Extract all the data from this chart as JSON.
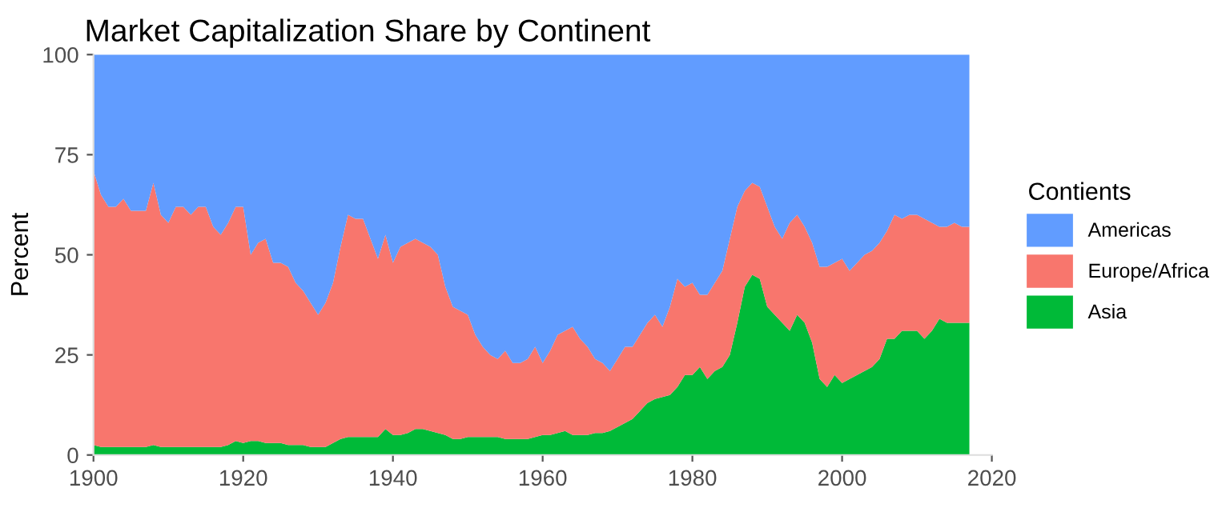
{
  "chart_data": {
    "type": "area",
    "stacked": true,
    "title": "Market Capitalization Share by Continent",
    "ylabel": "Percent",
    "legend_title": "Contients",
    "legend": "right",
    "grid": false,
    "x": [
      1900,
      1901,
      1902,
      1903,
      1904,
      1905,
      1906,
      1907,
      1908,
      1909,
      1910,
      1911,
      1912,
      1913,
      1914,
      1915,
      1916,
      1917,
      1918,
      1919,
      1920,
      1921,
      1922,
      1923,
      1924,
      1925,
      1926,
      1927,
      1928,
      1929,
      1930,
      1931,
      1932,
      1933,
      1934,
      1935,
      1936,
      1937,
      1938,
      1939,
      1940,
      1941,
      1942,
      1943,
      1944,
      1945,
      1946,
      1947,
      1948,
      1949,
      1950,
      1951,
      1952,
      1953,
      1954,
      1955,
      1956,
      1957,
      1958,
      1959,
      1960,
      1961,
      1962,
      1963,
      1964,
      1965,
      1966,
      1967,
      1968,
      1969,
      1970,
      1971,
      1972,
      1973,
      1974,
      1975,
      1976,
      1977,
      1978,
      1979,
      1980,
      1981,
      1982,
      1983,
      1984,
      1985,
      1986,
      1987,
      1988,
      1989,
      1990,
      1991,
      1992,
      1993,
      1994,
      1995,
      1996,
      1997,
      1998,
      1999,
      2000,
      2001,
      2002,
      2003,
      2004,
      2005,
      2006,
      2007,
      2008,
      2009,
      2010,
      2011,
      2012,
      2013,
      2014,
      2015,
      2016,
      2017
    ],
    "series": [
      {
        "name": "Asia",
        "color": "#00ba38",
        "values": [
          2.5,
          2,
          2,
          2,
          2,
          2,
          2,
          2,
          2.5,
          2,
          2,
          2,
          2,
          2,
          2,
          2,
          2,
          2,
          2.5,
          3.5,
          3,
          3.5,
          3.5,
          3,
          3,
          3,
          2.5,
          2.5,
          2.5,
          2,
          2,
          2,
          3,
          4,
          4.5,
          4.5,
          4.5,
          4.5,
          4.5,
          6.5,
          5,
          5,
          5.5,
          6.5,
          6.5,
          6,
          5.5,
          5,
          4,
          4,
          4.5,
          4.5,
          4.5,
          4.5,
          4.5,
          4,
          4,
          4,
          4,
          4.5,
          5,
          5,
          5.5,
          6,
          5,
          5,
          5,
          5.5,
          5.5,
          6,
          7,
          8,
          9,
          11,
          13,
          14,
          14.5,
          15,
          17,
          20,
          20,
          22,
          19,
          21,
          22,
          25,
          33,
          42,
          45,
          44,
          37,
          35,
          33,
          31,
          35,
          33,
          28,
          19,
          17,
          20,
          18,
          19,
          20,
          21,
          22,
          24,
          29,
          29,
          31,
          31,
          31,
          29,
          31,
          34,
          33,
          33,
          33,
          33
        ]
      },
      {
        "name": "Europe/Africa",
        "color": "#f8766d",
        "values": [
          68.5,
          63,
          60,
          60,
          62,
          59,
          59,
          59,
          65.5,
          58,
          56,
          60,
          60,
          58,
          60,
          60,
          55,
          53,
          55.5,
          58.5,
          59,
          46.5,
          49.5,
          51,
          45,
          45,
          44.5,
          40.5,
          38.5,
          36,
          33,
          36,
          40,
          48,
          55.5,
          54.5,
          54.5,
          49.5,
          44.5,
          48.5,
          43,
          47,
          47.5,
          47.5,
          46.5,
          46,
          44.5,
          37,
          33,
          32,
          30.5,
          25.5,
          22.5,
          20.5,
          19.5,
          22,
          19,
          19,
          20,
          22.5,
          18,
          21,
          24.5,
          25,
          27,
          24,
          22,
          18.5,
          17.5,
          15,
          17,
          19,
          18,
          19,
          20,
          21,
          17.5,
          22,
          27,
          22,
          23,
          18,
          21,
          22,
          24,
          29,
          29,
          24,
          23,
          23,
          25,
          22,
          21,
          27,
          25,
          24,
          25,
          28,
          30,
          28,
          31,
          27,
          28,
          29,
          29,
          29,
          27,
          31,
          28,
          29,
          29,
          30,
          27,
          23,
          24,
          25,
          24,
          24
        ]
      },
      {
        "name": "Americas",
        "color": "#619cff",
        "values": [
          29,
          35,
          38,
          38,
          36,
          39,
          39,
          39,
          32,
          40,
          42,
          38,
          38,
          40,
          38,
          38,
          43,
          45,
          42,
          38,
          38,
          50,
          47,
          46,
          52,
          52,
          53,
          57,
          59,
          62,
          65,
          62,
          57,
          48,
          40,
          41,
          41,
          46,
          51,
          45,
          52,
          48,
          47,
          46,
          47,
          48,
          50,
          58,
          63,
          64,
          65,
          70,
          73,
          75,
          76,
          74,
          77,
          77,
          76,
          73,
          77,
          74,
          70,
          69,
          68,
          71,
          73,
          76,
          77,
          79,
          76,
          73,
          73,
          70,
          67,
          65,
          68,
          63,
          56,
          58,
          57,
          60,
          60,
          57,
          54,
          46,
          38,
          34,
          32,
          33,
          38,
          43,
          46,
          42,
          40,
          43,
          47,
          53,
          53,
          52,
          51,
          54,
          52,
          50,
          49,
          47,
          44,
          40,
          41,
          40,
          40,
          41,
          42,
          43,
          43,
          42,
          43,
          43
        ]
      }
    ],
    "xlim": [
      1900,
      2020
    ],
    "xticks": [
      1900,
      1920,
      1940,
      1960,
      1980,
      2000,
      2020
    ],
    "ylim": [
      0,
      100
    ],
    "yticks": [
      0,
      25,
      50,
      75,
      100
    ]
  }
}
